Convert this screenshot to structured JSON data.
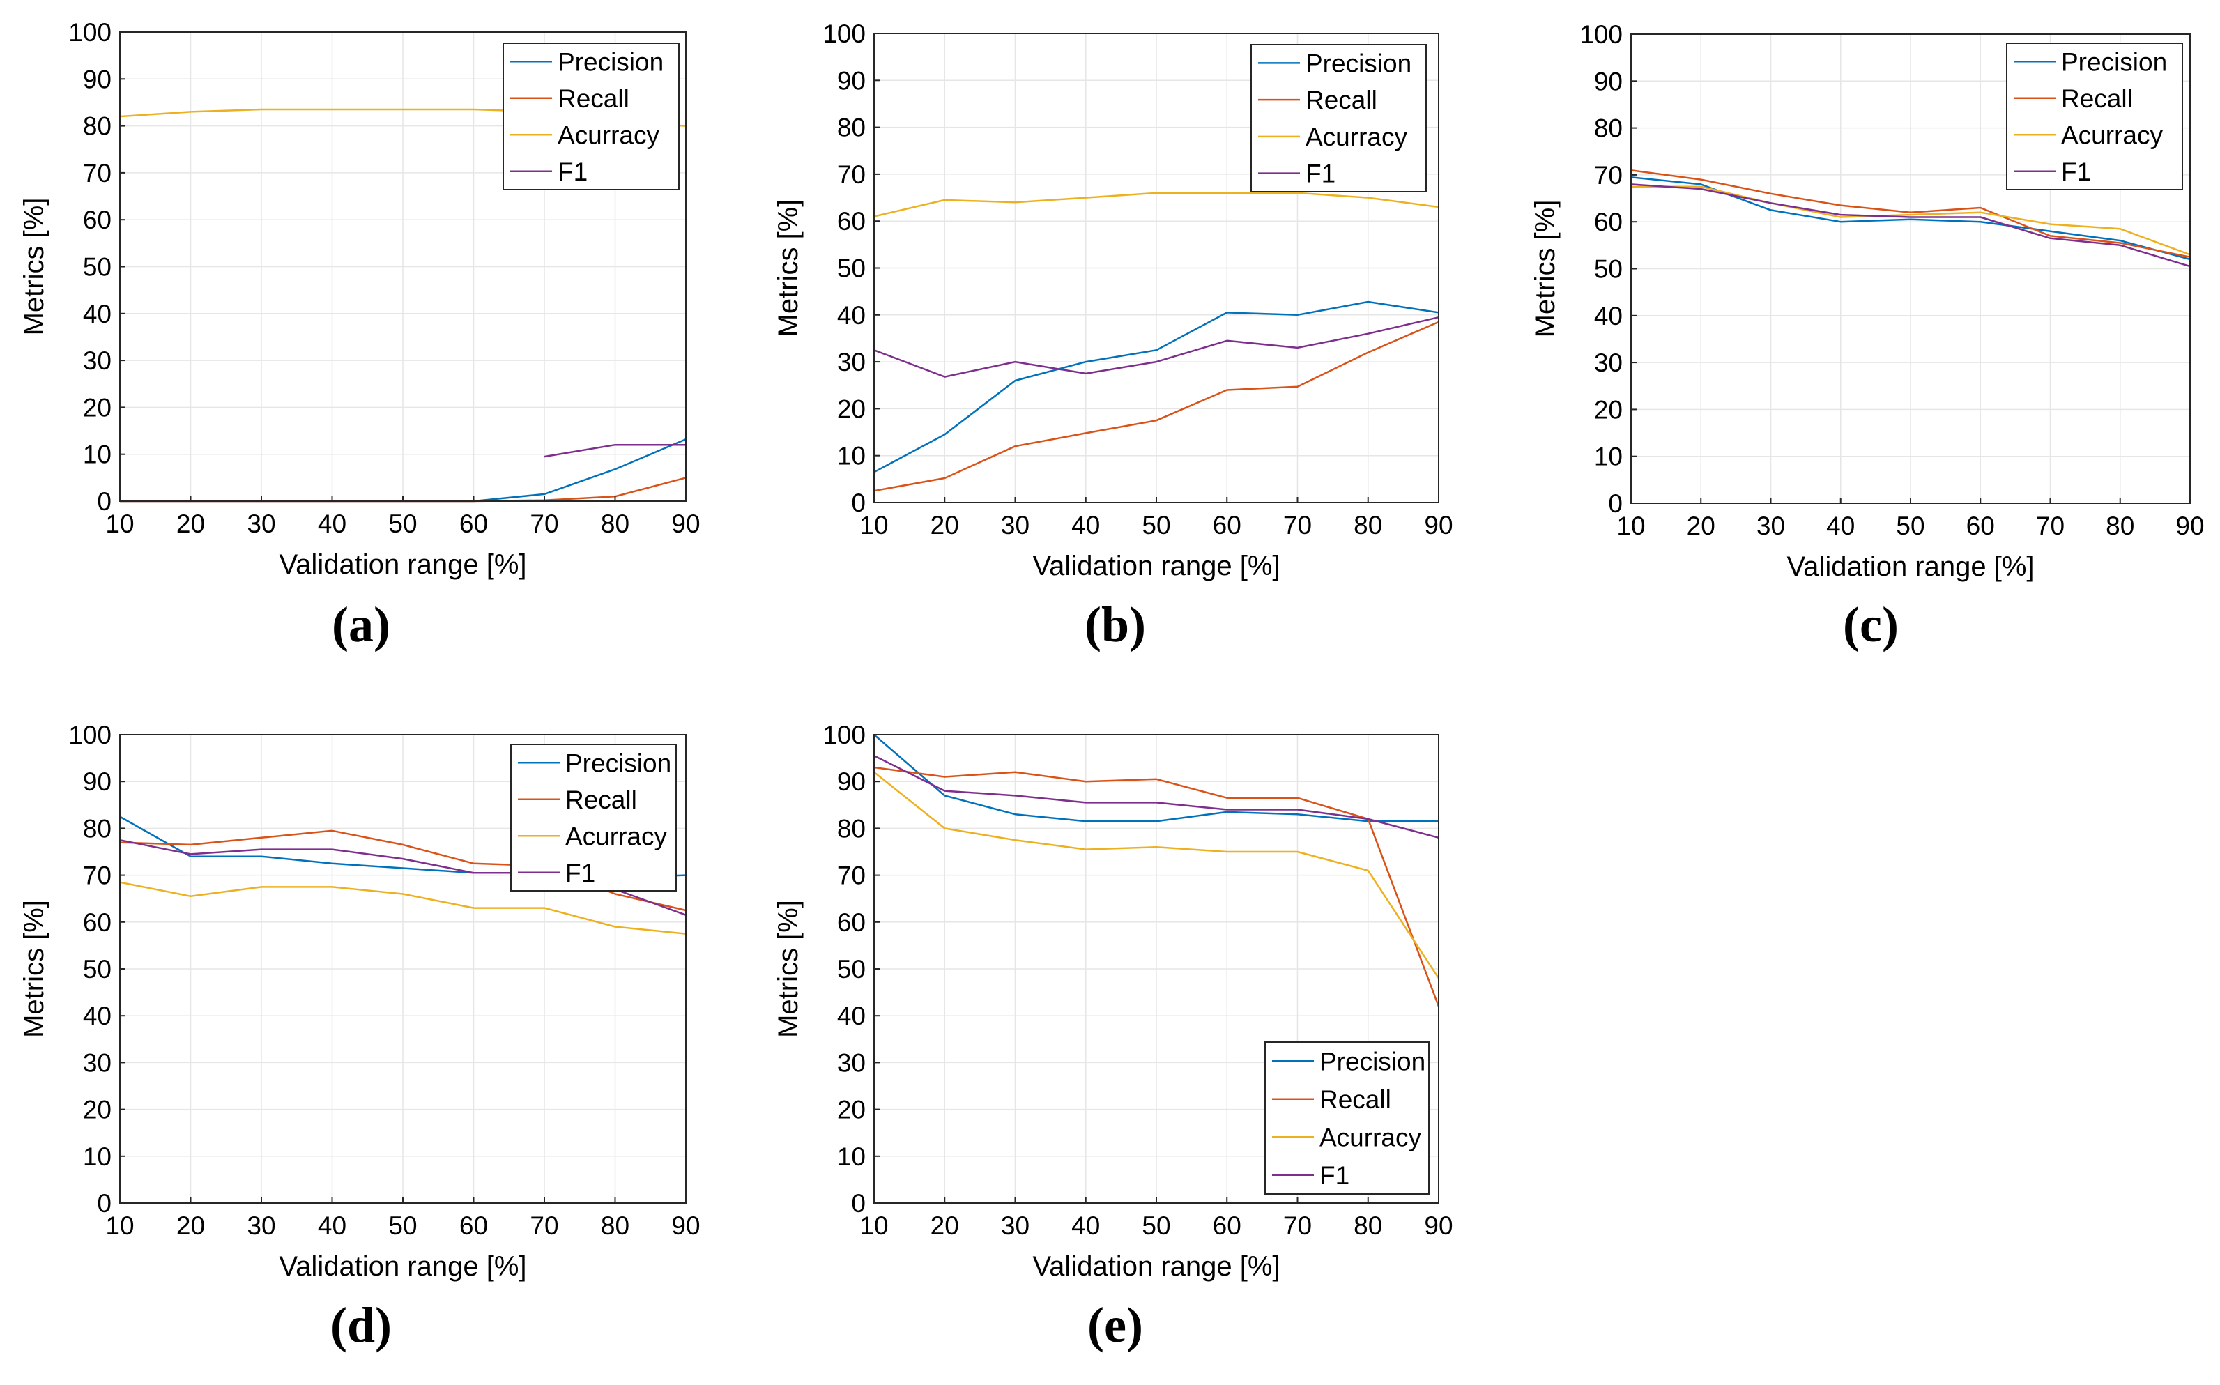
{
  "legend_labels": [
    "Precision",
    "Recall",
    "Acurracy",
    "F1"
  ],
  "series_colors": [
    "#0072BD",
    "#D95319",
    "#EDB120",
    "#7E2F8E"
  ],
  "chart_data": [
    {
      "panel_label": "(a)",
      "type": "line",
      "xlabel": "Validation range [%]",
      "ylabel": "Metrics [%]",
      "xlim": [
        10,
        90
      ],
      "ylim": [
        0,
        100
      ],
      "xticks": [
        10,
        20,
        30,
        40,
        50,
        60,
        70,
        80,
        90
      ],
      "yticks": [
        0,
        10,
        20,
        30,
        40,
        50,
        60,
        70,
        80,
        90,
        100
      ],
      "grid": true,
      "legend_position": "top-right",
      "x": [
        10,
        20,
        30,
        40,
        50,
        60,
        70,
        80,
        90
      ],
      "series": [
        {
          "name": "Precision",
          "values": [
            0,
            0,
            0,
            0,
            0,
            0,
            1.5,
            6.8,
            13.2
          ]
        },
        {
          "name": "Recall",
          "values": [
            0,
            0,
            0,
            0,
            0,
            0,
            0.2,
            1.0,
            5.0
          ]
        },
        {
          "name": "Acurracy",
          "values": [
            82,
            83,
            83.5,
            83.5,
            83.5,
            83.5,
            83,
            81,
            80
          ]
        },
        {
          "name": "F1",
          "values": [
            null,
            null,
            null,
            null,
            null,
            null,
            9.5,
            12,
            12
          ]
        }
      ]
    },
    {
      "panel_label": "(b)",
      "type": "line",
      "xlabel": "Validation range [%]",
      "ylabel": "Metrics [%]",
      "xlim": [
        10,
        90
      ],
      "ylim": [
        0,
        100
      ],
      "xticks": [
        10,
        20,
        30,
        40,
        50,
        60,
        70,
        80,
        90
      ],
      "yticks": [
        0,
        10,
        20,
        30,
        40,
        50,
        60,
        70,
        80,
        90,
        100
      ],
      "grid": true,
      "legend_position": "top-right",
      "x": [
        10,
        20,
        30,
        40,
        50,
        60,
        70,
        80,
        90
      ],
      "series": [
        {
          "name": "Precision",
          "values": [
            6.5,
            14.5,
            26,
            30,
            32.5,
            40.5,
            40,
            42.8,
            40.5
          ]
        },
        {
          "name": "Recall",
          "values": [
            2.5,
            5.2,
            12,
            14.8,
            17.5,
            24,
            24.7,
            32,
            38.5
          ]
        },
        {
          "name": "Acurracy",
          "values": [
            61,
            64.5,
            64,
            65,
            66,
            66,
            66,
            65,
            63
          ]
        },
        {
          "name": "F1",
          "values": [
            32.5,
            26.8,
            30,
            27.5,
            30,
            34.5,
            33,
            36,
            39.5
          ]
        }
      ]
    },
    {
      "panel_label": "(c)",
      "type": "line",
      "xlabel": "Validation range [%]",
      "ylabel": "Metrics [%]",
      "xlim": [
        10,
        90
      ],
      "ylim": [
        0,
        100
      ],
      "xticks": [
        10,
        20,
        30,
        40,
        50,
        60,
        70,
        80,
        90
      ],
      "yticks": [
        0,
        10,
        20,
        30,
        40,
        50,
        60,
        70,
        80,
        90,
        100
      ],
      "grid": true,
      "legend_position": "top-right",
      "x": [
        10,
        20,
        30,
        40,
        50,
        60,
        70,
        80,
        90
      ],
      "series": [
        {
          "name": "Precision",
          "values": [
            69.5,
            68,
            62.5,
            60,
            60.5,
            60,
            58,
            56,
            52
          ]
        },
        {
          "name": "Recall",
          "values": [
            71,
            69,
            66,
            63.5,
            62,
            63,
            57,
            55.5,
            52.5
          ]
        },
        {
          "name": "Acurracy",
          "values": [
            67.5,
            67.5,
            64,
            61,
            61.5,
            62,
            59.5,
            58.5,
            53
          ]
        },
        {
          "name": "F1",
          "values": [
            68,
            67,
            64,
            61.5,
            61,
            61,
            56.5,
            55,
            50.5
          ]
        }
      ]
    },
    {
      "panel_label": "(d)",
      "type": "line",
      "xlabel": "Validation range [%]",
      "ylabel": "Metrics [%]",
      "xlim": [
        10,
        90
      ],
      "ylim": [
        0,
        100
      ],
      "xticks": [
        10,
        20,
        30,
        40,
        50,
        60,
        70,
        80,
        90
      ],
      "yticks": [
        0,
        10,
        20,
        30,
        40,
        50,
        60,
        70,
        80,
        90,
        100
      ],
      "grid": true,
      "legend_position": "top-right",
      "x": [
        10,
        20,
        30,
        40,
        50,
        60,
        70,
        80,
        90
      ],
      "series": [
        {
          "name": "Precision",
          "values": [
            82.5,
            74,
            74,
            72.5,
            71.5,
            70.5,
            70.5,
            69.5,
            70
          ]
        },
        {
          "name": "Recall",
          "values": [
            77,
            76.5,
            78,
            79.5,
            76.5,
            72.5,
            72,
            66,
            62.5
          ]
        },
        {
          "name": "Acurracy",
          "values": [
            68.5,
            65.5,
            67.5,
            67.5,
            66,
            63,
            63,
            59,
            57.5
          ]
        },
        {
          "name": "F1",
          "values": [
            77.5,
            74.5,
            75.5,
            75.5,
            73.5,
            70.5,
            70.5,
            67,
            61.5
          ]
        }
      ]
    },
    {
      "panel_label": "(e)",
      "type": "line",
      "xlabel": "Validation range [%]",
      "ylabel": "Metrics [%]",
      "xlim": [
        10,
        90
      ],
      "ylim": [
        0,
        100
      ],
      "xticks": [
        10,
        20,
        30,
        40,
        50,
        60,
        70,
        80,
        90
      ],
      "yticks": [
        0,
        10,
        20,
        30,
        40,
        50,
        60,
        70,
        80,
        90,
        100
      ],
      "grid": true,
      "legend_position": "bottom-right",
      "x": [
        10,
        20,
        30,
        40,
        50,
        60,
        70,
        80,
        90
      ],
      "series": [
        {
          "name": "Precision",
          "values": [
            100,
            87,
            83,
            81.5,
            81.5,
            83.5,
            83,
            81.5,
            81.5
          ]
        },
        {
          "name": "Recall",
          "values": [
            93,
            91,
            92,
            90,
            90.5,
            86.5,
            86.5,
            82,
            42
          ]
        },
        {
          "name": "Acurracy",
          "values": [
            92,
            80,
            77.5,
            75.5,
            76,
            75,
            75,
            71,
            48
          ]
        },
        {
          "name": "F1",
          "values": [
            95.5,
            88,
            87,
            85.5,
            85.5,
            84,
            84,
            82,
            78
          ]
        }
      ]
    }
  ]
}
